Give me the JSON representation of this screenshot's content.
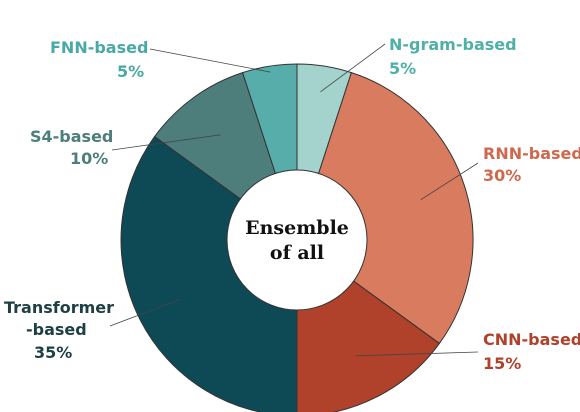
{
  "chart_data": {
    "type": "pie",
    "center_label": [
      "Ensemble",
      "of all"
    ],
    "slices": [
      {
        "name": "N-gram-based",
        "value": 5,
        "value_label": "5%",
        "color": "#a3d3cc",
        "label_color": "#4fb0a8"
      },
      {
        "name": "RNN-based",
        "value": 30,
        "value_label": "30%",
        "color": "#d97b5e",
        "label_color": "#d0694c"
      },
      {
        "name": "CNN-based",
        "value": 15,
        "value_label": "15%",
        "color": "#b0412b",
        "label_color": "#b0412b"
      },
      {
        "name": "Transformer -based",
        "value": 35,
        "value_label": "35%",
        "color": "#0d4a55",
        "label_color": "#1e3f45"
      },
      {
        "name": "S4-based",
        "value": 10,
        "value_label": "10%",
        "color": "#4e7e7c",
        "label_color": "#4e7e7c"
      },
      {
        "name": "FNN-based",
        "value": 5,
        "value_label": "5%",
        "color": "#56ada9",
        "label_color": "#49a9a4"
      }
    ]
  }
}
